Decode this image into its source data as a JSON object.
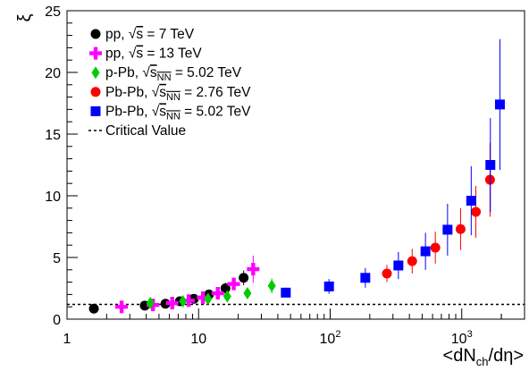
{
  "chart_data": {
    "type": "scatter",
    "title": "",
    "xlabel": "<dNch/dη>",
    "ylabel": "ξ",
    "xscale": "log",
    "xlim": [
      1,
      3000
    ],
    "ylim": [
      0,
      25
    ],
    "x_ticks": [
      {
        "value": 1,
        "label": "1"
      },
      {
        "value": 10,
        "label": "10"
      },
      {
        "value": 100,
        "label": "10²"
      },
      {
        "value": 1000,
        "label": "10³"
      }
    ],
    "y_ticks": [
      0,
      5,
      10,
      15,
      20,
      25
    ],
    "critical_value": 1.2,
    "legend": {
      "position": "top-left"
    },
    "series": [
      {
        "name": "pp, √s = 7 TeV",
        "marker": "circle",
        "color": "#000000",
        "points": [
          {
            "x": 1.6,
            "y": 0.85,
            "err": 0.1
          },
          {
            "x": 3.9,
            "y": 1.1,
            "err": 0.1
          },
          {
            "x": 5.6,
            "y": 1.25,
            "err": 0.15
          },
          {
            "x": 7.2,
            "y": 1.45,
            "err": 0.2
          },
          {
            "x": 9.2,
            "y": 1.65,
            "err": 0.25
          },
          {
            "x": 12.0,
            "y": 2.0,
            "err": 0.35
          },
          {
            "x": 16.0,
            "y": 2.5,
            "err": 0.45
          },
          {
            "x": 22.0,
            "y": 3.35,
            "err": 0.6
          }
        ]
      },
      {
        "name": "pp, √s = 13 TeV",
        "marker": "cross",
        "color": "#ff00ff",
        "points": [
          {
            "x": 2.6,
            "y": 1.0,
            "err": 0.1
          },
          {
            "x": 4.5,
            "y": 1.15,
            "err": 0.1
          },
          {
            "x": 6.3,
            "y": 1.3,
            "err": 0.15
          },
          {
            "x": 8.4,
            "y": 1.5,
            "err": 0.2
          },
          {
            "x": 10.8,
            "y": 1.75,
            "err": 0.25
          },
          {
            "x": 14.0,
            "y": 2.1,
            "err": 0.3
          },
          {
            "x": 18.5,
            "y": 2.85,
            "err": 0.5
          },
          {
            "x": 26.0,
            "y": 4.05,
            "err": 1.1
          }
        ]
      },
      {
        "name": "p-Pb, √sNN = 5.02 TeV",
        "marker": "diamond",
        "color": "#00cc00",
        "points": [
          {
            "x": 4.3,
            "y": 1.3,
            "err": 0.2
          },
          {
            "x": 7.6,
            "y": 1.45,
            "err": 0.25
          },
          {
            "x": 11.8,
            "y": 1.65,
            "err": 0.3
          },
          {
            "x": 16.5,
            "y": 1.85,
            "err": 0.35
          },
          {
            "x": 23.5,
            "y": 2.1,
            "err": 0.4
          },
          {
            "x": 36.0,
            "y": 2.7,
            "err": 0.6
          }
        ]
      },
      {
        "name": "Pb-Pb, √sNN = 2.76 TeV",
        "marker": "circle",
        "color": "#ff0000",
        "points": [
          {
            "x": 270,
            "y": 3.7,
            "err": 0.7
          },
          {
            "x": 420,
            "y": 4.7,
            "err": 1.0
          },
          {
            "x": 630,
            "y": 5.8,
            "err": 1.3
          },
          {
            "x": 980,
            "y": 7.3,
            "err": 1.7
          },
          {
            "x": 1280,
            "y": 8.7,
            "err": 2.1
          },
          {
            "x": 1640,
            "y": 11.3,
            "err": 3.0
          }
        ]
      },
      {
        "name": "Pb-Pb, √sNN = 5.02 TeV",
        "marker": "square",
        "color": "#0000ff",
        "points": [
          {
            "x": 46,
            "y": 2.15,
            "err": 0.4
          },
          {
            "x": 98,
            "y": 2.65,
            "err": 0.6
          },
          {
            "x": 185,
            "y": 3.35,
            "err": 0.8
          },
          {
            "x": 330,
            "y": 4.35,
            "err": 1.1
          },
          {
            "x": 530,
            "y": 5.5,
            "err": 1.5
          },
          {
            "x": 780,
            "y": 7.25,
            "err": 2.1
          },
          {
            "x": 1180,
            "y": 9.6,
            "err": 2.8
          },
          {
            "x": 1650,
            "y": 12.5,
            "err": 3.8
          },
          {
            "x": 1950,
            "y": 17.4,
            "err": 5.3
          }
        ]
      },
      {
        "name": "Critical Value",
        "marker": "dashed-line",
        "color": "#000000",
        "points": []
      }
    ]
  }
}
